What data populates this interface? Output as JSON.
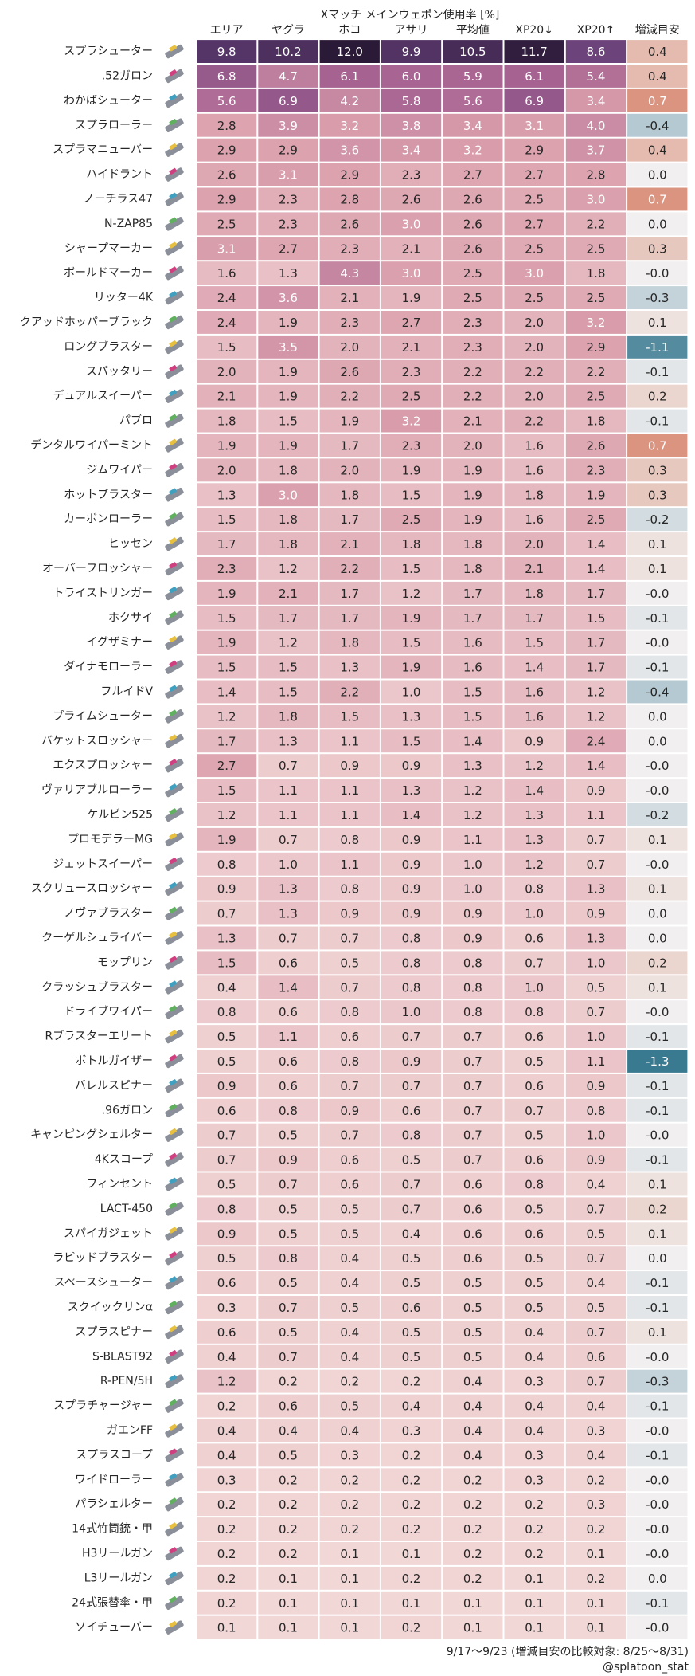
{
  "chart_data": {
    "type": "heatmap",
    "title": "Xマッチ メインウェポン使用率 [%]",
    "columns": [
      "エリア",
      "ヤグラ",
      "ホコ",
      "アサリ",
      "平均値",
      "XP20↓",
      "XP20↑"
    ],
    "rows": [
      "スプラシューター",
      ".52ガロン",
      "わかばシューター",
      "スプラローラー",
      "スプラマニューバー",
      "ハイドラント",
      "ノーチラス47",
      "N-ZAP85",
      "シャープマーカー",
      "ボールドマーカー",
      "リッター4K",
      "クアッドホッパーブラック",
      "ロングブラスター",
      "スパッタリー",
      "デュアルスイーパー",
      "パブロ",
      "デンタルワイパーミント",
      "ジムワイパー",
      "ホットブラスター",
      "カーボンローラー",
      "ヒッセン",
      "オーバーフロッシャー",
      "トライストリンガー",
      "ホクサイ",
      "イグザミナー",
      "ダイナモローラー",
      "フルイドV",
      "プライムシューター",
      "バケットスロッシャー",
      "エクスプロッシャー",
      "ヴァリアブルローラー",
      "ケルビン525",
      "プロモデラーMG",
      "ジェットスイーパー",
      "スクリュースロッシャー",
      "ノヴァブラスター",
      "クーゲルシュライバー",
      "モップリン",
      "クラッシュブラスター",
      "ドライブワイパー",
      "Rブラスターエリート",
      "ボトルガイザー",
      "バレルスピナー",
      ".96ガロン",
      "キャンピングシェルター",
      "4Kスコープ",
      "フィンセント",
      "LACT-450",
      "スパイガジェット",
      "ラピッドブラスター",
      "スペースシューター",
      "スクイックリンα",
      "スプラスピナー",
      "S-BLAST92",
      "R-PEN/5H",
      "スプラチャージャー",
      "ガエンFF",
      "スプラスコープ",
      "ワイドローラー",
      "パラシェルター",
      "14式竹筒銃・甲",
      "H3リールガン",
      "L3リールガン",
      "24式張替傘・甲",
      "ソイチューバー"
    ],
    "values": [
      [
        9.8,
        10.2,
        12.0,
        9.9,
        10.5,
        11.7,
        8.6
      ],
      [
        6.8,
        4.7,
        6.1,
        6.0,
        5.9,
        6.1,
        5.4
      ],
      [
        5.6,
        6.9,
        4.2,
        5.8,
        5.6,
        6.9,
        3.4
      ],
      [
        2.8,
        3.9,
        3.2,
        3.8,
        3.4,
        3.1,
        4.0
      ],
      [
        2.9,
        2.9,
        3.6,
        3.4,
        3.2,
        2.9,
        3.7
      ],
      [
        2.6,
        3.1,
        2.9,
        2.3,
        2.7,
        2.7,
        2.8
      ],
      [
        2.9,
        2.3,
        2.8,
        2.6,
        2.6,
        2.5,
        3.0
      ],
      [
        2.5,
        2.3,
        2.6,
        3.0,
        2.6,
        2.7,
        2.2
      ],
      [
        3.1,
        2.7,
        2.3,
        2.1,
        2.6,
        2.5,
        2.5
      ],
      [
        1.6,
        1.3,
        4.3,
        3.0,
        2.5,
        3.0,
        1.8
      ],
      [
        2.4,
        3.6,
        2.1,
        1.9,
        2.5,
        2.5,
        2.5
      ],
      [
        2.4,
        1.9,
        2.3,
        2.7,
        2.3,
        2.0,
        3.2
      ],
      [
        1.5,
        3.5,
        2.0,
        2.1,
        2.3,
        2.0,
        2.9
      ],
      [
        2.0,
        1.9,
        2.6,
        2.3,
        2.2,
        2.2,
        2.2
      ],
      [
        2.1,
        1.9,
        2.2,
        2.5,
        2.2,
        2.0,
        2.5
      ],
      [
        1.8,
        1.5,
        1.9,
        3.2,
        2.1,
        2.2,
        1.8
      ],
      [
        1.9,
        1.9,
        1.7,
        2.3,
        2.0,
        1.6,
        2.6
      ],
      [
        2.0,
        1.8,
        2.0,
        1.9,
        1.9,
        1.6,
        2.3
      ],
      [
        1.3,
        3.0,
        1.8,
        1.5,
        1.9,
        1.8,
        1.9
      ],
      [
        1.5,
        1.8,
        1.7,
        2.5,
        1.9,
        1.6,
        2.5
      ],
      [
        1.7,
        1.8,
        2.1,
        1.8,
        1.8,
        2.0,
        1.4
      ],
      [
        2.3,
        1.2,
        2.2,
        1.5,
        1.8,
        2.1,
        1.4
      ],
      [
        1.9,
        2.1,
        1.7,
        1.2,
        1.7,
        1.8,
        1.7
      ],
      [
        1.5,
        1.7,
        1.7,
        1.9,
        1.7,
        1.7,
        1.5
      ],
      [
        1.9,
        1.2,
        1.8,
        1.5,
        1.6,
        1.5,
        1.7
      ],
      [
        1.5,
        1.5,
        1.3,
        1.9,
        1.6,
        1.4,
        1.7
      ],
      [
        1.4,
        1.5,
        2.2,
        1.0,
        1.5,
        1.6,
        1.2
      ],
      [
        1.2,
        1.8,
        1.5,
        1.3,
        1.5,
        1.6,
        1.2
      ],
      [
        1.7,
        1.3,
        1.1,
        1.5,
        1.4,
        0.9,
        2.4
      ],
      [
        2.7,
        0.7,
        0.9,
        0.9,
        1.3,
        1.2,
        1.4
      ],
      [
        1.5,
        1.1,
        1.1,
        1.3,
        1.2,
        1.4,
        0.9
      ],
      [
        1.2,
        1.1,
        1.1,
        1.4,
        1.2,
        1.3,
        1.1
      ],
      [
        1.9,
        0.7,
        0.8,
        0.9,
        1.1,
        1.3,
        0.7
      ],
      [
        0.8,
        1.0,
        1.1,
        0.9,
        1.0,
        1.2,
        0.7
      ],
      [
        0.9,
        1.3,
        0.8,
        0.9,
        1.0,
        0.8,
        1.3
      ],
      [
        0.7,
        1.3,
        0.9,
        0.9,
        0.9,
        1.0,
        0.9
      ],
      [
        1.3,
        0.7,
        0.7,
        0.8,
        0.9,
        0.6,
        1.3
      ],
      [
        1.5,
        0.6,
        0.5,
        0.8,
        0.8,
        0.7,
        1.0
      ],
      [
        0.4,
        1.4,
        0.7,
        0.8,
        0.8,
        1.0,
        0.5
      ],
      [
        0.8,
        0.6,
        0.8,
        1.0,
        0.8,
        0.8,
        0.7
      ],
      [
        0.5,
        1.1,
        0.6,
        0.7,
        0.7,
        0.6,
        1.0
      ],
      [
        0.5,
        0.6,
        0.8,
        0.9,
        0.7,
        0.5,
        1.1
      ],
      [
        0.9,
        0.6,
        0.7,
        0.7,
        0.7,
        0.6,
        0.9
      ],
      [
        0.6,
        0.8,
        0.9,
        0.6,
        0.7,
        0.7,
        0.8
      ],
      [
        0.7,
        0.5,
        0.7,
        0.8,
        0.7,
        0.5,
        1.0
      ],
      [
        0.7,
        0.9,
        0.6,
        0.5,
        0.7,
        0.6,
        0.9
      ],
      [
        0.5,
        0.7,
        0.6,
        0.7,
        0.6,
        0.8,
        0.4
      ],
      [
        0.8,
        0.5,
        0.5,
        0.7,
        0.6,
        0.5,
        0.7
      ],
      [
        0.9,
        0.5,
        0.5,
        0.4,
        0.6,
        0.6,
        0.5
      ],
      [
        0.5,
        0.8,
        0.4,
        0.5,
        0.6,
        0.5,
        0.7
      ],
      [
        0.6,
        0.5,
        0.4,
        0.5,
        0.5,
        0.5,
        0.4
      ],
      [
        0.3,
        0.7,
        0.5,
        0.6,
        0.5,
        0.5,
        0.5
      ],
      [
        0.6,
        0.5,
        0.4,
        0.5,
        0.5,
        0.4,
        0.7
      ],
      [
        0.4,
        0.7,
        0.4,
        0.5,
        0.5,
        0.4,
        0.6
      ],
      [
        1.2,
        0.2,
        0.2,
        0.2,
        0.4,
        0.3,
        0.7
      ],
      [
        0.2,
        0.6,
        0.5,
        0.4,
        0.4,
        0.4,
        0.4
      ],
      [
        0.4,
        0.4,
        0.4,
        0.3,
        0.4,
        0.4,
        0.3
      ],
      [
        0.4,
        0.5,
        0.3,
        0.2,
        0.4,
        0.3,
        0.4
      ],
      [
        0.3,
        0.2,
        0.2,
        0.2,
        0.2,
        0.3,
        0.2
      ],
      [
        0.2,
        0.2,
        0.2,
        0.2,
        0.2,
        0.2,
        0.3
      ],
      [
        0.2,
        0.2,
        0.2,
        0.2,
        0.2,
        0.2,
        0.2
      ],
      [
        0.2,
        0.2,
        0.1,
        0.1,
        0.2,
        0.2,
        0.1
      ],
      [
        0.2,
        0.1,
        0.1,
        0.2,
        0.2,
        0.1,
        0.2
      ],
      [
        0.2,
        0.1,
        0.1,
        0.1,
        0.1,
        0.1,
        0.1
      ],
      [
        0.1,
        0.1,
        0.1,
        0.2,
        0.1,
        0.1,
        0.1
      ]
    ],
    "value_labels": [
      [
        "9.8",
        "10.2",
        "12.0",
        "9.9",
        "10.5",
        "11.7",
        "8.6"
      ],
      [
        "6.8",
        "4.7",
        "6.1",
        "6.0",
        "5.9",
        "6.1",
        "5.4"
      ],
      [
        "5.6",
        "6.9",
        "4.2",
        "5.8",
        "5.6",
        "6.9",
        "3.4"
      ],
      [
        "2.8",
        "3.9",
        "3.2",
        "3.8",
        "3.4",
        "3.1",
        "4.0"
      ],
      [
        "2.9",
        "2.9",
        "3.6",
        "3.4",
        "3.2",
        "2.9",
        "3.7"
      ],
      [
        "2.6",
        "3.1",
        "2.9",
        "2.3",
        "2.7",
        "2.7",
        "2.8"
      ],
      [
        "2.9",
        "2.3",
        "2.8",
        "2.6",
        "2.6",
        "2.5",
        "3.0"
      ],
      [
        "2.5",
        "2.3",
        "2.6",
        "3.0",
        "2.6",
        "2.7",
        "2.2"
      ],
      [
        "3.1",
        "2.7",
        "2.3",
        "2.1",
        "2.6",
        "2.5",
        "2.5"
      ],
      [
        "1.6",
        "1.3",
        "4.3",
        "3.0",
        "2.5",
        "3.0",
        "1.8"
      ],
      [
        "2.4",
        "3.6",
        "2.1",
        "1.9",
        "2.5",
        "2.5",
        "2.5"
      ],
      [
        "2.4",
        "1.9",
        "2.3",
        "2.7",
        "2.3",
        "2.0",
        "3.2"
      ],
      [
        "1.5",
        "3.5",
        "2.0",
        "2.1",
        "2.3",
        "2.0",
        "2.9"
      ],
      [
        "2.0",
        "1.9",
        "2.6",
        "2.3",
        "2.2",
        "2.2",
        "2.2"
      ],
      [
        "2.1",
        "1.9",
        "2.2",
        "2.5",
        "2.2",
        "2.0",
        "2.5"
      ],
      [
        "1.8",
        "1.5",
        "1.9",
        "3.2",
        "2.1",
        "2.2",
        "1.8"
      ],
      [
        "1.9",
        "1.9",
        "1.7",
        "2.3",
        "2.0",
        "1.6",
        "2.6"
      ],
      [
        "2.0",
        "1.8",
        "2.0",
        "1.9",
        "1.9",
        "1.6",
        "2.3"
      ],
      [
        "1.3",
        "3.0",
        "1.8",
        "1.5",
        "1.9",
        "1.8",
        "1.9"
      ],
      [
        "1.5",
        "1.8",
        "1.7",
        "2.5",
        "1.9",
        "1.6",
        "2.5"
      ],
      [
        "1.7",
        "1.8",
        "2.1",
        "1.8",
        "1.8",
        "2.0",
        "1.4"
      ],
      [
        "2.3",
        "1.2",
        "2.2",
        "1.5",
        "1.8",
        "2.1",
        "1.4"
      ],
      [
        "1.9",
        "2.1",
        "1.7",
        "1.2",
        "1.7",
        "1.8",
        "1.7"
      ],
      [
        "1.5",
        "1.7",
        "1.7",
        "1.9",
        "1.7",
        "1.7",
        "1.5"
      ],
      [
        "1.9",
        "1.2",
        "1.8",
        "1.5",
        "1.6",
        "1.5",
        "1.7"
      ],
      [
        "1.5",
        "1.5",
        "1.3",
        "1.9",
        "1.6",
        "1.4",
        "1.7"
      ],
      [
        "1.4",
        "1.5",
        "2.2",
        "1.0",
        "1.5",
        "1.6",
        "1.2"
      ],
      [
        "1.2",
        "1.8",
        "1.5",
        "1.3",
        "1.5",
        "1.6",
        "1.2"
      ],
      [
        "1.7",
        "1.3",
        "1.1",
        "1.5",
        "1.4",
        "0.9",
        "2.4"
      ],
      [
        "2.7",
        "0.7",
        "0.9",
        "0.9",
        "1.3",
        "1.2",
        "1.4"
      ],
      [
        "1.5",
        "1.1",
        "1.1",
        "1.3",
        "1.2",
        "1.4",
        "0.9"
      ],
      [
        "1.2",
        "1.1",
        "1.1",
        "1.4",
        "1.2",
        "1.3",
        "1.1"
      ],
      [
        "1.9",
        "0.7",
        "0.8",
        "0.9",
        "1.1",
        "1.3",
        "0.7"
      ],
      [
        "0.8",
        "1.0",
        "1.1",
        "0.9",
        "1.0",
        "1.2",
        "0.7"
      ],
      [
        "0.9",
        "1.3",
        "0.8",
        "0.9",
        "1.0",
        "0.8",
        "1.3"
      ],
      [
        "0.7",
        "1.3",
        "0.9",
        "0.9",
        "0.9",
        "1.0",
        "0.9"
      ],
      [
        "1.3",
        "0.7",
        "0.7",
        "0.8",
        "0.9",
        "0.6",
        "1.3"
      ],
      [
        "1.5",
        "0.6",
        "0.5",
        "0.8",
        "0.8",
        "0.7",
        "1.0"
      ],
      [
        "0.4",
        "1.4",
        "0.7",
        "0.8",
        "0.8",
        "1.0",
        "0.5"
      ],
      [
        "0.8",
        "0.6",
        "0.8",
        "1.0",
        "0.8",
        "0.8",
        "0.7"
      ],
      [
        "0.5",
        "1.1",
        "0.6",
        "0.7",
        "0.7",
        "0.6",
        "1.0"
      ],
      [
        "0.5",
        "0.6",
        "0.8",
        "0.9",
        "0.7",
        "0.5",
        "1.1"
      ],
      [
        "0.9",
        "0.6",
        "0.7",
        "0.7",
        "0.7",
        "0.6",
        "0.9"
      ],
      [
        "0.6",
        "0.8",
        "0.9",
        "0.6",
        "0.7",
        "0.7",
        "0.8"
      ],
      [
        "0.7",
        "0.5",
        "0.7",
        "0.8",
        "0.7",
        "0.5",
        "1.0"
      ],
      [
        "0.7",
        "0.9",
        "0.6",
        "0.5",
        "0.7",
        "0.6",
        "0.9"
      ],
      [
        "0.5",
        "0.7",
        "0.6",
        "0.7",
        "0.6",
        "0.8",
        "0.4"
      ],
      [
        "0.8",
        "0.5",
        "0.5",
        "0.7",
        "0.6",
        "0.5",
        "0.7"
      ],
      [
        "0.9",
        "0.5",
        "0.5",
        "0.4",
        "0.6",
        "0.6",
        "0.5"
      ],
      [
        "0.5",
        "0.8",
        "0.4",
        "0.5",
        "0.6",
        "0.5",
        "0.7"
      ],
      [
        "0.6",
        "0.5",
        "0.4",
        "0.5",
        "0.5",
        "0.5",
        "0.4"
      ],
      [
        "0.3",
        "0.7",
        "0.5",
        "0.6",
        "0.5",
        "0.5",
        "0.5"
      ],
      [
        "0.6",
        "0.5",
        "0.4",
        "0.5",
        "0.5",
        "0.4",
        "0.7"
      ],
      [
        "0.4",
        "0.7",
        "0.4",
        "0.5",
        "0.5",
        "0.4",
        "0.6"
      ],
      [
        "1.2",
        "0.2",
        "0.2",
        "0.2",
        "0.4",
        "0.3",
        "0.7"
      ],
      [
        "0.2",
        "0.6",
        "0.5",
        "0.4",
        "0.4",
        "0.4",
        "0.4"
      ],
      [
        "0.4",
        "0.4",
        "0.4",
        "0.3",
        "0.4",
        "0.4",
        "0.3"
      ],
      [
        "0.4",
        "0.5",
        "0.3",
        "0.2",
        "0.4",
        "0.3",
        "0.4"
      ],
      [
        "0.3",
        "0.2",
        "0.2",
        "0.2",
        "0.2",
        "0.3",
        "0.2"
      ],
      [
        "0.2",
        "0.2",
        "0.2",
        "0.2",
        "0.2",
        "0.2",
        "0.3"
      ],
      [
        "0.2",
        "0.2",
        "0.2",
        "0.2",
        "0.2",
        "0.2",
        "0.2"
      ],
      [
        "0.2",
        "0.2",
        "0.1",
        "0.1",
        "0.2",
        "0.2",
        "0.1"
      ],
      [
        "0.2",
        "0.1",
        "0.1",
        "0.2",
        "0.2",
        "0.1",
        "0.2"
      ],
      [
        "0.2",
        "0.1",
        "0.1",
        "0.1",
        "0.1",
        "0.1",
        "0.1"
      ],
      [
        "0.1",
        "0.1",
        "0.1",
        "0.2",
        "0.1",
        "0.1",
        "0.1"
      ]
    ],
    "change": {
      "name": "増減目安",
      "values": [
        0.4,
        0.4,
        0.7,
        -0.4,
        0.4,
        0.0,
        0.7,
        0.0,
        0.3,
        -0.0,
        -0.3,
        0.1,
        -1.1,
        -0.1,
        0.2,
        -0.1,
        0.7,
        0.3,
        0.3,
        -0.2,
        0.1,
        0.1,
        -0.0,
        -0.1,
        -0.0,
        -0.1,
        -0.4,
        0.0,
        0.0,
        -0.0,
        -0.0,
        -0.2,
        0.1,
        -0.0,
        0.1,
        0.0,
        0.0,
        0.2,
        0.1,
        -0.0,
        -0.1,
        -1.3,
        -0.1,
        -0.1,
        -0.0,
        -0.1,
        0.1,
        0.2,
        0.1,
        0.0,
        -0.1,
        -0.1,
        0.1,
        -0.0,
        -0.3,
        -0.1,
        -0.0,
        -0.1,
        -0.0,
        -0.0,
        -0.0,
        -0.0,
        0.0,
        -0.1,
        -0.0
      ],
      "value_labels": [
        "0.4",
        "0.4",
        "0.7",
        "-0.4",
        "0.4",
        "0.0",
        "0.7",
        "0.0",
        "0.3",
        "-0.0",
        "-0.3",
        "0.1",
        "-1.1",
        "-0.1",
        "0.2",
        "-0.1",
        "0.7",
        "0.3",
        "0.3",
        "-0.2",
        "0.1",
        "0.1",
        "-0.0",
        "-0.1",
        "-0.0",
        "-0.1",
        "-0.4",
        "0.0",
        "0.0",
        "-0.0",
        "-0.0",
        "-0.2",
        "0.1",
        "-0.0",
        "0.1",
        "0.0",
        "0.0",
        "0.2",
        "0.1",
        "-0.0",
        "-0.1",
        "-1.3",
        "-0.1",
        "-0.1",
        "-0.0",
        "-0.1",
        "0.1",
        "0.2",
        "0.1",
        "0.0",
        "-0.1",
        "-0.1",
        "0.1",
        "-0.0",
        "-0.3",
        "-0.1",
        "-0.0",
        "-0.1",
        "-0.0",
        "-0.0",
        "-0.0",
        "-0.0",
        "0.0",
        "-0.1",
        "-0.0"
      ]
    },
    "footnote": "9/17〜9/23 (増減目安の比較対象: 8/25〜8/31)",
    "credit": "@splatoon_stat"
  }
}
